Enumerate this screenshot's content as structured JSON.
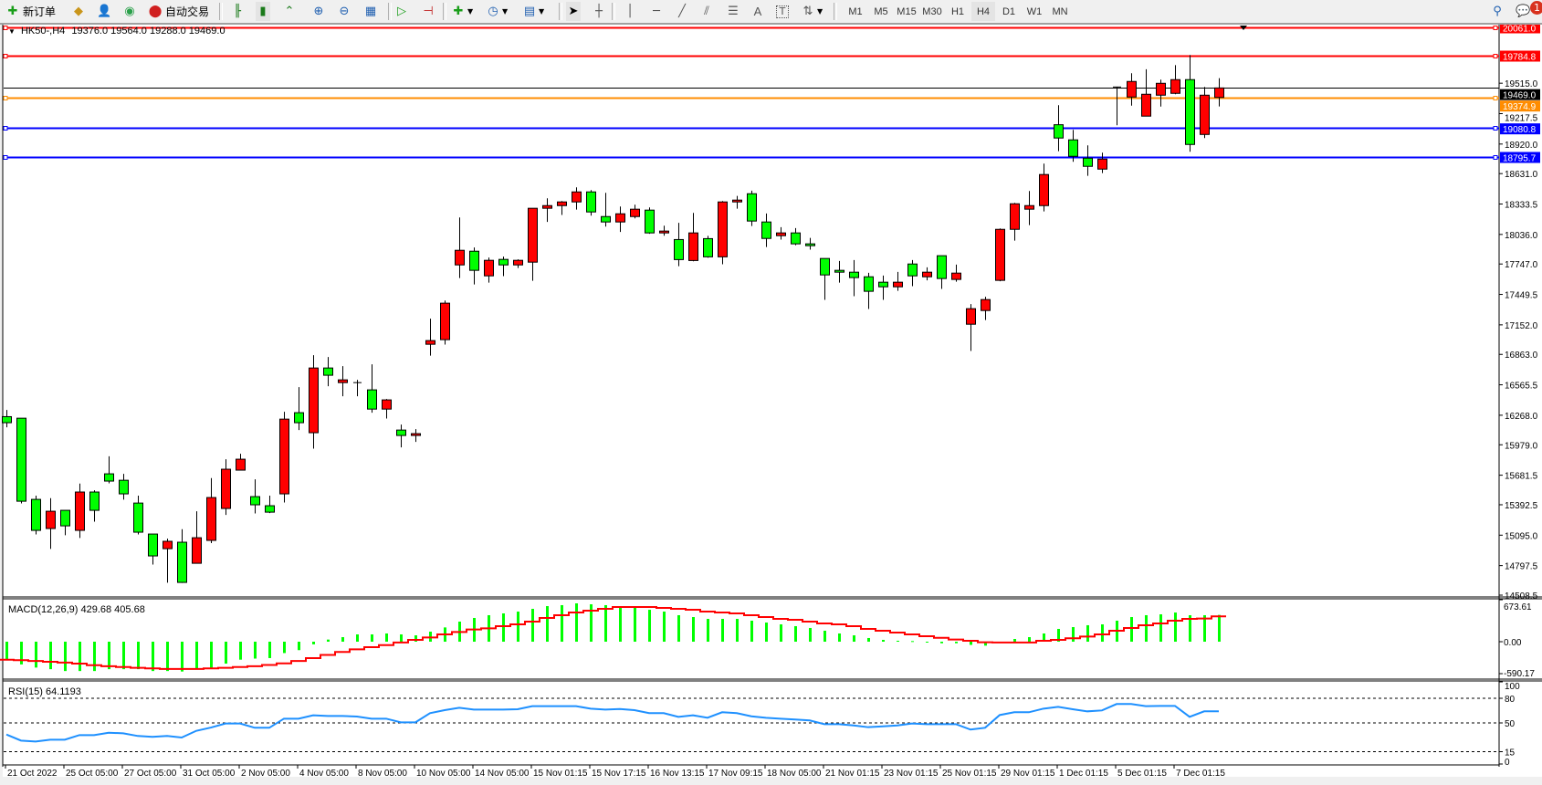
{
  "toolbar": {
    "new_order": "新订单",
    "auto_trading": "自动交易",
    "timeframes": [
      "M1",
      "M5",
      "M15",
      "M30",
      "H1",
      "H4",
      "D1",
      "W1",
      "MN"
    ],
    "active_timeframe": "H4",
    "notifications_count": "1",
    "icons": [
      "new-order-icon",
      "gold-icon",
      "people-icon",
      "signal-icon",
      "auto-trading-icon",
      "bar-chart-icon",
      "candlestick-icon",
      "line-chart-icon",
      "zoom-in-icon",
      "zoom-out-icon",
      "tile-windows-icon",
      "auto-scroll-icon",
      "chart-shift-icon",
      "new-chart-icon",
      "clock-icon",
      "template-icon",
      "cursor-icon",
      "crosshair-icon",
      "vertical-line-icon",
      "horizontal-line-icon",
      "trend-line-icon",
      "equidistant-channel-icon",
      "fibonacci-icon",
      "text-icon",
      "text-label-icon",
      "arrows-icon",
      "search-icon",
      "chat-icon"
    ]
  },
  "header": {
    "symbol": "HK50-,H4",
    "ohlc": "19376.0 19564.0 19288.0 19469.0"
  },
  "price_axis": {
    "ticks": [
      "19515.0",
      "19217.5",
      "18920.0",
      "18631.0",
      "18333.5",
      "18036.0",
      "17747.0",
      "17449.5",
      "17152.0",
      "16863.0",
      "16565.5",
      "16268.0",
      "15979.0",
      "15681.5",
      "15392.5",
      "15095.0",
      "14797.5",
      "14508.5"
    ],
    "tick_values": [
      19515.0,
      19217.5,
      18920.0,
      18631.0,
      18333.5,
      18036.0,
      17747.0,
      17449.5,
      17152.0,
      16863.0,
      16565.5,
      16268.0,
      15979.0,
      15681.5,
      15392.5,
      15095.0,
      14797.5,
      14508.5
    ],
    "range": [
      14508.5,
      20061.0
    ]
  },
  "levels": [
    {
      "label": "20061.0",
      "value": 20061.0,
      "color": "#ff0000",
      "handle": true
    },
    {
      "label": "19784.8",
      "value": 19784.8,
      "color": "#ff0000",
      "handle": true
    },
    {
      "label": "19469.0",
      "value": 19469.0,
      "color": "#000000",
      "handle": false
    },
    {
      "label": "19374.9",
      "value": 19374.9,
      "color": "#ff8c00",
      "handle": true
    },
    {
      "label": "19080.8",
      "value": 19080.8,
      "color": "#0000ff",
      "handle": true
    },
    {
      "label": "18795.7",
      "value": 18795.7,
      "color": "#0000ff",
      "handle": true
    }
  ],
  "colors": {
    "bull": "#ff0000",
    "bear": "#00ff00",
    "macd_hist": "#00ff00",
    "macd_signal": "#ff0000",
    "rsi": "#1e90ff"
  },
  "time_axis": {
    "labels": [
      "21 Oct 2022",
      "25 Oct 05:00",
      "27 Oct 05:00",
      "31 Oct 05:00",
      "2 Nov 05:00",
      "4 Nov 05:00",
      "8 Nov 05:00",
      "10 Nov 05:00",
      "14 Nov 05:00",
      "15 Nov 01:15",
      "15 Nov 17:15",
      "16 Nov 13:15",
      "17 Nov 09:15",
      "18 Nov 05:00",
      "21 Nov 01:15",
      "23 Nov 01:15",
      "25 Nov 01:15",
      "29 Nov 01:15",
      "1 Dec 01:15",
      "5 Dec 01:15",
      "7 Dec 01:15"
    ]
  },
  "chart_data": {
    "type": "candlestick",
    "ohlc_order": [
      "open",
      "high",
      "low",
      "close"
    ],
    "candles": [
      [
        16254,
        16320,
        16150,
        16195
      ],
      [
        16239,
        16239,
        15406,
        15427
      ],
      [
        15445,
        15481,
        15102,
        15142
      ],
      [
        15160,
        15457,
        14960,
        15329
      ],
      [
        15338,
        15338,
        15094,
        15186
      ],
      [
        15142,
        15600,
        15067,
        15517
      ],
      [
        15517,
        15534,
        15227,
        15338
      ],
      [
        15695,
        15867,
        15602,
        15624
      ],
      [
        15632,
        15695,
        15442,
        15499
      ],
      [
        15409,
        15481,
        15102,
        15124
      ],
      [
        15106,
        15106,
        14808,
        14892
      ],
      [
        14963,
        15061,
        14630,
        15035
      ],
      [
        15026,
        15153,
        14628,
        14633
      ],
      [
        14820,
        15329,
        14820,
        15070
      ],
      [
        15044,
        15653,
        15017,
        15463
      ],
      [
        15356,
        15838,
        15293,
        15740
      ],
      [
        15731,
        15891,
        15731,
        15838
      ],
      [
        15472,
        15641,
        15308,
        15392
      ],
      [
        15383,
        15481,
        15311,
        15320
      ],
      [
        15499,
        16302,
        15415,
        16230
      ],
      [
        16293,
        16543,
        16123,
        16195
      ],
      [
        16097,
        16855,
        15941,
        16730
      ],
      [
        16730,
        16837,
        16552,
        16659
      ],
      [
        16587,
        16748,
        16453,
        16614
      ],
      [
        16587,
        16614,
        16453,
        16587
      ],
      [
        16516,
        16766,
        16293,
        16328
      ],
      [
        16328,
        16427,
        16236,
        16418
      ],
      [
        16123,
        16177,
        15954,
        16070
      ],
      [
        16070,
        16132,
        16007,
        16088
      ],
      [
        16962,
        17212,
        16851,
        16998
      ],
      [
        17007,
        17390,
        16959,
        17364
      ],
      [
        17738,
        18202,
        17610,
        17881
      ],
      [
        17872,
        17908,
        17547,
        17685
      ],
      [
        17631,
        17810,
        17565,
        17783
      ],
      [
        17792,
        17819,
        17628,
        17738
      ],
      [
        17738,
        17792,
        17708,
        17783
      ],
      [
        17765,
        18292,
        17583,
        18292
      ],
      [
        18292,
        18390,
        18158,
        18318
      ],
      [
        18318,
        18363,
        18226,
        18354
      ],
      [
        18354,
        18497,
        18279,
        18452
      ],
      [
        18452,
        18470,
        18220,
        18256
      ],
      [
        18211,
        18443,
        18113,
        18158
      ],
      [
        18158,
        18309,
        18060,
        18238
      ],
      [
        18211,
        18327,
        18193,
        18283
      ],
      [
        18274,
        18300,
        18042,
        18051
      ],
      [
        18051,
        18122,
        18024,
        18069
      ],
      [
        17986,
        18149,
        17726,
        17790
      ],
      [
        17781,
        18247,
        17774,
        18051
      ],
      [
        17995,
        18022,
        17808,
        17817
      ],
      [
        17817,
        18363,
        17744,
        18354
      ],
      [
        18354,
        18413,
        18288,
        18372
      ],
      [
        18434,
        18464,
        18118,
        18167
      ],
      [
        18158,
        18241,
        17913,
        17997
      ],
      [
        18024,
        18107,
        17985,
        18051
      ],
      [
        18051,
        18098,
        17931,
        17944
      ],
      [
        17944,
        18002,
        17887,
        17926
      ],
      [
        17801,
        17801,
        17396,
        17640
      ],
      [
        17685,
        17777,
        17565,
        17667
      ],
      [
        17667,
        17786,
        17432,
        17614
      ],
      [
        17622,
        17661,
        17307,
        17480
      ],
      [
        17569,
        17634,
        17396,
        17524
      ],
      [
        17524,
        17670,
        17485,
        17569
      ],
      [
        17747,
        17786,
        17530,
        17631
      ],
      [
        17622,
        17714,
        17587,
        17667
      ],
      [
        17828,
        17828,
        17503,
        17605
      ],
      [
        17596,
        17741,
        17574,
        17658
      ],
      [
        17158,
        17355,
        16896,
        17310
      ],
      [
        17292,
        17426,
        17199,
        17399
      ],
      [
        17587,
        18095,
        17578,
        18086
      ],
      [
        18086,
        18345,
        17976,
        18336
      ],
      [
        18283,
        18461,
        18127,
        18318
      ],
      [
        18318,
        18729,
        18261,
        18622
      ],
      [
        19109,
        19300,
        18850,
        18979
      ],
      [
        18961,
        19059,
        18747,
        18800
      ],
      [
        18782,
        18907,
        18609,
        18702
      ],
      [
        18675,
        18836,
        18636,
        18773
      ],
      [
        19478,
        19478,
        19104,
        19478
      ],
      [
        19380,
        19612,
        19296,
        19532
      ],
      [
        19193,
        19651,
        19193,
        19407
      ],
      [
        19398,
        19550,
        19287,
        19514
      ],
      [
        19416,
        19692,
        19407,
        19550
      ],
      [
        19550,
        19791,
        18845,
        18916
      ],
      [
        19014,
        19478,
        18979,
        19398
      ],
      [
        19376,
        19564,
        19288,
        19469
      ]
    ],
    "macd": {
      "label": "MACD(12,26,9) 429.68 405.68",
      "axis_labels": [
        "673.61",
        "0.00",
        "-590.17"
      ],
      "range": [
        -590.17,
        673.61
      ],
      "histogram": [
        -346,
        -420,
        -478,
        -508,
        -542,
        -542,
        -542,
        -508,
        -508,
        -508,
        -542,
        -542,
        -551,
        -508,
        -493,
        -405,
        -332,
        -312,
        -303,
        -210,
        -156,
        -49,
        34,
        73,
        117,
        117,
        132,
        117,
        102,
        161,
        229,
        322,
        381,
        425,
        454,
        483,
        527,
        571,
        586,
        615,
        600,
        586,
        571,
        542,
        512,
        483,
        425,
        395,
        366,
        366,
        366,
        337,
        307,
        278,
        249,
        220,
        176,
        132,
        102,
        59,
        29,
        15,
        10,
        -10,
        -29,
        -29,
        -59,
        -73,
        0,
        44,
        73,
        132,
        205,
        234,
        264,
        278,
        337,
        395,
        425,
        439,
        468,
        425,
        425,
        429.68
      ],
      "signal": [
        -332,
        -342,
        -356,
        -371,
        -386,
        -405,
        -434,
        -454,
        -468,
        -483,
        -493,
        -503,
        -503,
        -503,
        -493,
        -483,
        -468,
        -454,
        -429,
        -400,
        -356,
        -303,
        -244,
        -190,
        -142,
        -102,
        -63,
        -15,
        29,
        68,
        117,
        156,
        195,
        215,
        249,
        278,
        322,
        381,
        425,
        468,
        498,
        527,
        556,
        556,
        556,
        542,
        527,
        512,
        483,
        468,
        454,
        425,
        395,
        366,
        351,
        322,
        293,
        278,
        249,
        205,
        176,
        146,
        117,
        88,
        63,
        34,
        15,
        -10,
        -15,
        -15,
        -15,
        15,
        29,
        54,
        83,
        117,
        176,
        220,
        264,
        293,
        337,
        366,
        371,
        405.68
      ]
    },
    "rsi": {
      "label": "RSI(15) 64.1193",
      "axis_labels": [
        "100",
        "80",
        "50",
        "15",
        "0"
      ],
      "levels": [
        80,
        50,
        15
      ],
      "range": [
        0,
        100
      ],
      "values": [
        35.9,
        28.5,
        27.4,
        29.6,
        29.6,
        35.2,
        35.2,
        38.1,
        37.4,
        34.1,
        33,
        34.1,
        32.2,
        40.4,
        44.4,
        49.3,
        49.3,
        44.1,
        44.1,
        55.2,
        55.2,
        59.3,
        58.5,
        58.5,
        57.8,
        55.2,
        55.2,
        50.7,
        50.7,
        61.9,
        65.6,
        68.5,
        66.3,
        66.3,
        66.3,
        66.7,
        70.4,
        70.4,
        70.4,
        70.4,
        67.4,
        66.3,
        67,
        65.6,
        61.9,
        61.9,
        57.4,
        59.3,
        56.3,
        63,
        61.9,
        58.1,
        56.3,
        55.2,
        54.1,
        53,
        48.5,
        48.5,
        47,
        44.8,
        45.9,
        47,
        49.3,
        48.5,
        48.5,
        48.5,
        41.9,
        44.1,
        59.6,
        63,
        63,
        67.4,
        69.6,
        66.7,
        64.1,
        65.2,
        73,
        73,
        70.4,
        70.7,
        70.7,
        57.4,
        64.1,
        64.1193
      ]
    }
  }
}
